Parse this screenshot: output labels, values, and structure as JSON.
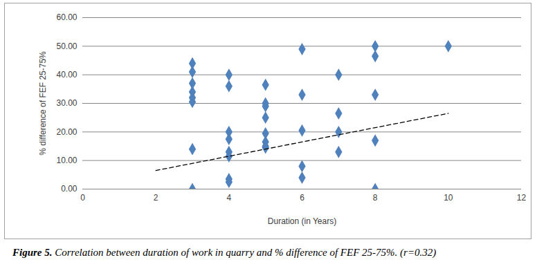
{
  "chart_data": {
    "type": "scatter",
    "title": "Figure 5. Correlation between duration of work in quarry and % difference of FEF 25-75%. (r=0.32)",
    "x_label": "Duration (in Years)",
    "y_label": "% difference of FEF 25-75%",
    "xlim": [
      0,
      12
    ],
    "xticks": [
      0,
      2,
      4,
      6,
      8,
      10,
      12
    ],
    "ylim": [
      0,
      60
    ],
    "yticks": [
      {
        "value": 0,
        "label": "0.00"
      },
      {
        "value": 10,
        "label": "10.00"
      },
      {
        "value": 20,
        "label": "20.00"
      },
      {
        "value": 30,
        "label": "30.00"
      },
      {
        "value": 40,
        "label": "40.00"
      },
      {
        "value": 50,
        "label": "50.00"
      },
      {
        "value": 60,
        "label": "60.00"
      }
    ],
    "grid": "y",
    "series": [
      {
        "type": "scatter",
        "marker": "diamond",
        "color": "#4f81bd",
        "x": [
          3,
          3,
          3,
          3,
          3,
          3,
          3,
          3,
          4,
          4,
          4,
          4,
          4,
          4,
          4,
          4,
          5,
          5,
          5,
          5,
          5,
          5,
          5,
          5,
          6,
          6,
          6,
          6,
          6,
          7,
          7,
          7,
          7,
          8,
          8,
          8,
          8,
          8,
          10
        ],
        "values": [
          44,
          41,
          37,
          34,
          32,
          30.5,
          14,
          0,
          40,
          36,
          20,
          17.5,
          13,
          11.5,
          3.5,
          2.5,
          36.5,
          30,
          29,
          25,
          19.5,
          16.5,
          15,
          14.5,
          49,
          33,
          20.5,
          8,
          4,
          40,
          26.5,
          20,
          13,
          50,
          46.5,
          33,
          17,
          0,
          50
        ]
      },
      {
        "type": "line",
        "line_style": "dashed",
        "color": "#000000",
        "x": [
          2,
          10
        ],
        "values": [
          6.5,
          26.5
        ]
      }
    ]
  }
}
